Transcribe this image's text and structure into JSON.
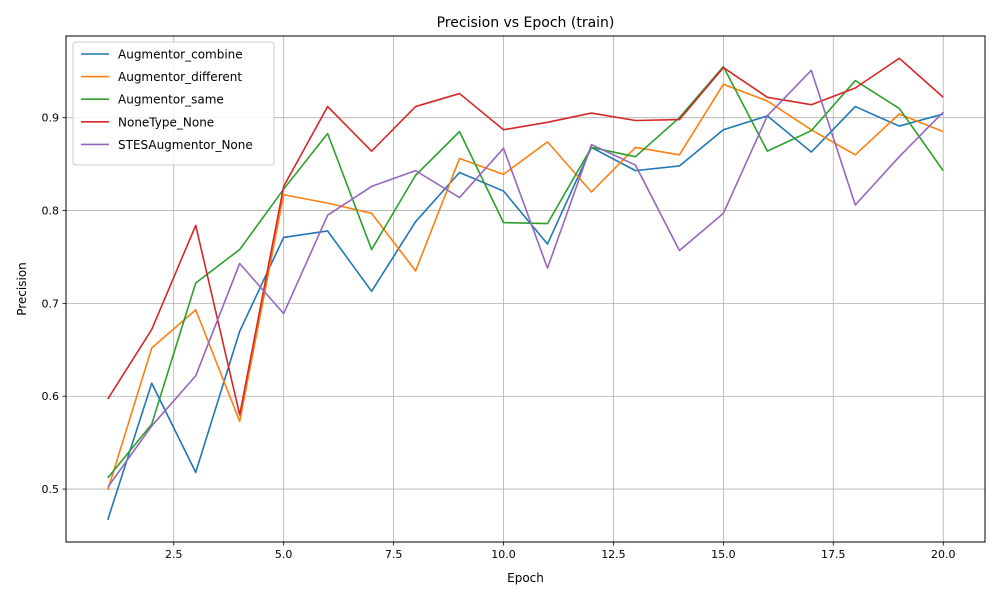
{
  "chart_data": {
    "type": "line",
    "title": "Precision vs Epoch (train)",
    "xlabel": "Epoch",
    "ylabel": "Precision",
    "xlim": [
      0.05,
      20.95
    ],
    "ylim": [
      0.443,
      0.988
    ],
    "x_ticks": [
      2.5,
      5.0,
      7.5,
      10.0,
      12.5,
      15.0,
      17.5,
      20.0
    ],
    "x_tick_labels": [
      "2.5",
      "5.0",
      "7.5",
      "10.0",
      "12.5",
      "15.0",
      "17.5",
      "20.0"
    ],
    "y_ticks": [
      0.5,
      0.6,
      0.7,
      0.8,
      0.9
    ],
    "y_tick_labels": [
      "0.5",
      "0.6",
      "0.7",
      "0.8",
      "0.9"
    ],
    "grid": true,
    "legend_position": "upper-left",
    "x": [
      1,
      2,
      3,
      4,
      5,
      6,
      7,
      8,
      9,
      10,
      11,
      12,
      13,
      14,
      15,
      16,
      17,
      18,
      19,
      20
    ],
    "series": [
      {
        "name": "Augmentor_combine",
        "color": "#1f77b4",
        "values": [
          0.467,
          0.614,
          0.518,
          0.67,
          0.771,
          0.778,
          0.713,
          0.788,
          0.841,
          0.821,
          0.764,
          0.868,
          0.843,
          0.848,
          0.887,
          0.902,
          0.863,
          0.912,
          0.891,
          0.904
        ]
      },
      {
        "name": "Augmentor_different",
        "color": "#ff7f0e",
        "values": [
          0.499,
          0.652,
          0.693,
          0.573,
          0.817,
          0.808,
          0.797,
          0.735,
          0.856,
          0.839,
          0.874,
          0.82,
          0.868,
          0.86,
          0.936,
          0.918,
          0.887,
          0.86,
          0.904,
          0.885
        ]
      },
      {
        "name": "Augmentor_same",
        "color": "#2ca02c",
        "values": [
          0.512,
          0.57,
          0.722,
          0.758,
          0.823,
          0.883,
          0.758,
          0.838,
          0.885,
          0.787,
          0.786,
          0.868,
          0.858,
          0.9,
          0.955,
          0.864,
          0.886,
          0.94,
          0.91,
          0.843
        ]
      },
      {
        "name": "NoneType_None",
        "color": "#d62728",
        "values": [
          0.597,
          0.672,
          0.784,
          0.58,
          0.826,
          0.912,
          0.864,
          0.912,
          0.926,
          0.887,
          0.895,
          0.905,
          0.897,
          0.898,
          0.954,
          0.922,
          0.914,
          0.932,
          0.964,
          0.922
        ]
      },
      {
        "name": "STESAugmentor_None",
        "color": "#9467bd",
        "values": [
          0.502,
          0.568,
          0.622,
          0.743,
          0.689,
          0.795,
          0.826,
          0.843,
          0.814,
          0.867,
          0.738,
          0.871,
          0.849,
          0.757,
          0.797,
          0.902,
          0.951,
          0.806,
          0.858,
          0.906
        ]
      }
    ]
  }
}
